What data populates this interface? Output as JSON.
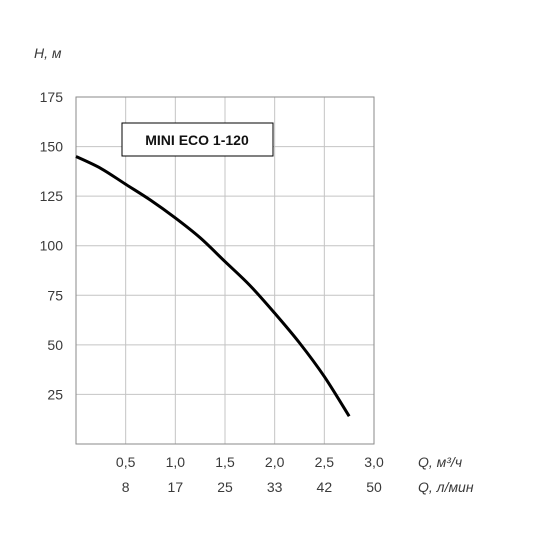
{
  "chart_data": {
    "type": "line",
    "ylabel": "H, м",
    "xlabel": "Q, м³/ч",
    "xlabel_secondary": "Q, л/мин",
    "xlim": [
      0,
      3.0
    ],
    "ylim": [
      0,
      175
    ],
    "grid": true,
    "y_ticks": [
      "25",
      "50",
      "75",
      "100",
      "125",
      "150",
      "175"
    ],
    "x_ticks": [
      {
        "primary": "0,5",
        "secondary": "8"
      },
      {
        "primary": "1,0",
        "secondary": "17"
      },
      {
        "primary": "1,5",
        "secondary": "25"
      },
      {
        "primary": "2,0",
        "secondary": "33"
      },
      {
        "primary": "2,5",
        "secondary": "42"
      },
      {
        "primary": "3,0",
        "secondary": "50"
      }
    ],
    "series": [
      {
        "name": "MINI ECO 1-120",
        "color": "#000000",
        "x": [
          0,
          0.25,
          0.5,
          0.75,
          1.0,
          1.25,
          1.5,
          1.75,
          2.0,
          2.25,
          2.5,
          2.75
        ],
        "y": [
          145,
          139,
          131,
          123,
          114,
          104,
          92,
          80,
          66,
          51,
          34,
          14
        ]
      }
    ]
  }
}
